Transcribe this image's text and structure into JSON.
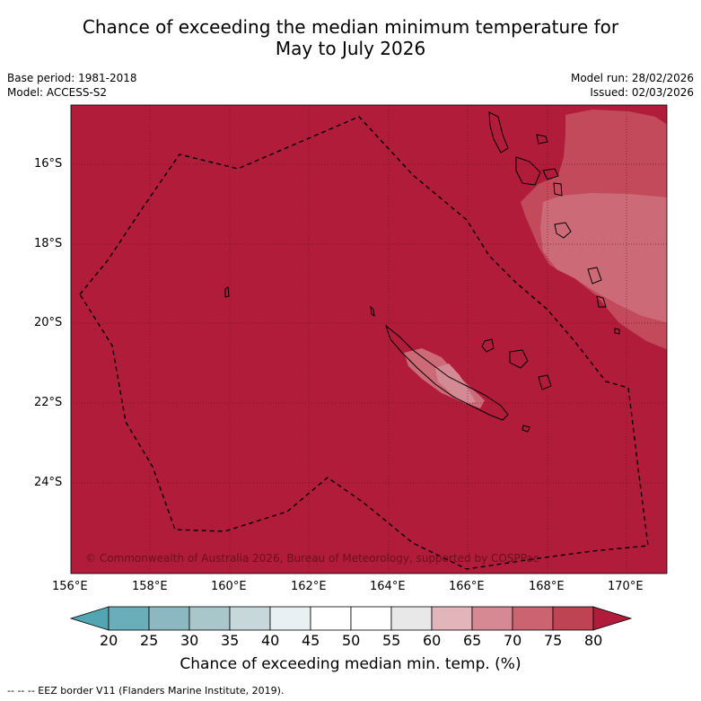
{
  "title_line1": "Chance of exceeding the median minimum temperature for",
  "title_line2": "May to July 2026",
  "base_period": "Base period: 1981-2018",
  "model": "Model: ACCESS-S2",
  "model_run": "Model run: 28/02/2026",
  "issued": "Issued: 02/03/2026",
  "copyright": "© Commonwealth of Australia 2026, Bureau of Meteorology, supported by COSPPac",
  "lat_ticks": [
    "16°S",
    "18°S",
    "20°S",
    "22°S",
    "24°S"
  ],
  "lon_ticks": [
    "156°E",
    "158°E",
    "160°E",
    "162°E",
    "164°E",
    "166°E",
    "168°E",
    "170°E"
  ],
  "colorbar": {
    "labels": [
      "20",
      "25",
      "30",
      "35",
      "40",
      "45",
      "50",
      "55",
      "60",
      "65",
      "70",
      "75",
      "80"
    ],
    "colors": [
      "#6aaeba",
      "#8cb8c1",
      "#a9c6cb",
      "#c7d8dc",
      "#e9f0f1",
      "#ffffff",
      "#ffffff",
      "#e8e8e8",
      "#e2b5bb",
      "#d68993",
      "#cb6470",
      "#be4453"
    ],
    "under_color": "#52a6b3",
    "over_color": "#b01c3a",
    "title": "Chance of exceeding median min. temp. (%)"
  },
  "map_colors": {
    "base": "#b01c3a",
    "band_75": "#c24a5a",
    "band_70": "#cc6a77",
    "band_65": "#d48a94"
  },
  "footnote": "--  --  -- EEZ border V11 (Flanders Marine Institute, 2019)."
}
